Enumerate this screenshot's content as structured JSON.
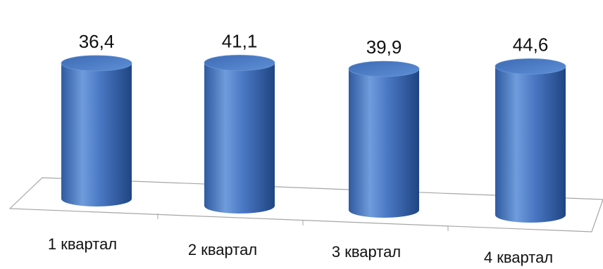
{
  "chart_data": {
    "type": "bar",
    "style": "3d-cylinder",
    "categories": [
      "1 квартал",
      "2 квартал",
      "3 квартал",
      "4 квартал"
    ],
    "values": [
      36.4,
      41.1,
      39.9,
      44.6
    ],
    "value_labels": [
      "36,4",
      "41,1",
      "39,9",
      "44,6"
    ],
    "title": "",
    "xlabel": "",
    "ylabel": "",
    "grid": false,
    "legend": "none",
    "colors": {
      "bar_light": "#6f9cdc",
      "bar_mid": "#4472c4",
      "bar_dark": "#234a87",
      "top_fill": "#4f81c7",
      "floor_stroke": "#a6a6a6"
    }
  }
}
